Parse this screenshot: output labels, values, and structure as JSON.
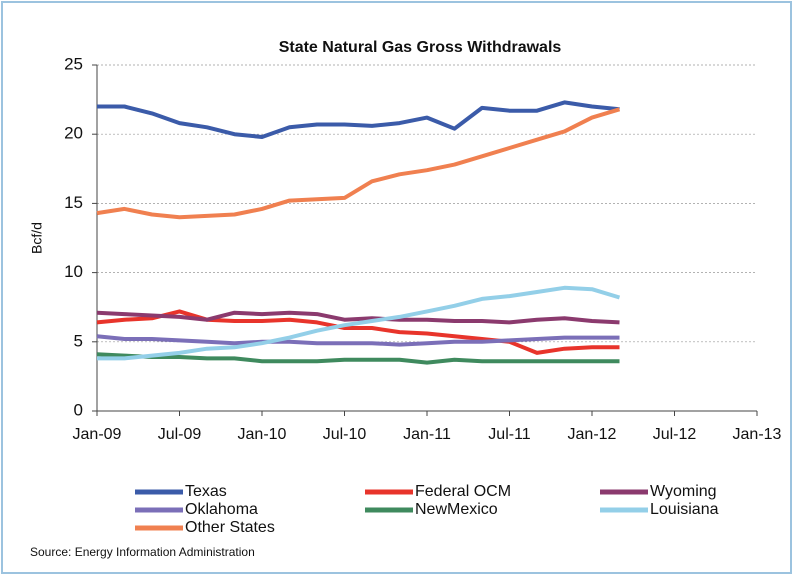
{
  "chart_data": {
    "type": "line",
    "title": "State Natural Gas Gross Withdrawals",
    "y_label": "Bcf/d",
    "source": "Source: Energy Information Administration",
    "x": [
      "2009-01",
      "2009-03",
      "2009-05",
      "2009-07",
      "2009-09",
      "2009-11",
      "2010-01",
      "2010-03",
      "2010-05",
      "2010-07",
      "2010-09",
      "2010-11",
      "2011-01",
      "2011-03",
      "2011-05",
      "2011-07",
      "2011-09",
      "2011-11",
      "2012-01",
      "2012-03"
    ],
    "xlim": [
      "2009-01",
      "2013-01"
    ],
    "xticks": [
      {
        "value": "2009-01",
        "label": "Jan-09"
      },
      {
        "value": "2009-07",
        "label": "Jul-09"
      },
      {
        "value": "2010-01",
        "label": "Jan-10"
      },
      {
        "value": "2010-07",
        "label": "Jul-10"
      },
      {
        "value": "2011-01",
        "label": "Jan-11"
      },
      {
        "value": "2011-07",
        "label": "Jul-11"
      },
      {
        "value": "2012-01",
        "label": "Jan-12"
      },
      {
        "value": "2012-07",
        "label": "Jul-12"
      },
      {
        "value": "2013-01",
        "label": "Jan-13"
      }
    ],
    "ylim": [
      0,
      25
    ],
    "yticks": [
      0,
      5,
      10,
      15,
      20,
      25
    ],
    "grid": true,
    "series": [
      {
        "name": "Texas",
        "color": "#3b5ba9",
        "values": [
          22,
          22,
          21.5,
          20.8,
          20.5,
          20,
          19.8,
          20.5,
          20.7,
          20.7,
          20.6,
          20.8,
          21.2,
          20.4,
          21.9,
          21.7,
          21.7,
          22.3,
          22,
          21.8
        ]
      },
      {
        "name": "Federal OCM",
        "color": "#e8342b",
        "values": [
          6.4,
          6.6,
          6.7,
          7.2,
          6.6,
          6.5,
          6.5,
          6.6,
          6.4,
          6,
          6,
          5.7,
          5.6,
          5.4,
          5.2,
          5,
          4.2,
          4.5,
          4.6,
          4.6
        ]
      },
      {
        "name": "Wyoming",
        "color": "#8b3a6e",
        "values": [
          7.1,
          7,
          6.9,
          6.8,
          6.6,
          7.1,
          7,
          7.1,
          7,
          6.6,
          6.7,
          6.6,
          6.6,
          6.5,
          6.5,
          6.4,
          6.6,
          6.7,
          6.5,
          6.4
        ]
      },
      {
        "name": "Oklahoma",
        "color": "#7b6fb8",
        "values": [
          5.4,
          5.2,
          5.2,
          5.1,
          5,
          4.9,
          5,
          5,
          4.9,
          4.9,
          4.9,
          4.8,
          4.9,
          5,
          5,
          5.1,
          5.2,
          5.3,
          5.3,
          5.3
        ]
      },
      {
        "name": "NewMexico",
        "color": "#3f8a5e",
        "values": [
          4.1,
          4,
          3.9,
          3.9,
          3.8,
          3.8,
          3.6,
          3.6,
          3.6,
          3.7,
          3.7,
          3.7,
          3.5,
          3.7,
          3.6,
          3.6,
          3.6,
          3.6,
          3.6,
          3.6
        ]
      },
      {
        "name": "Louisiana",
        "color": "#93cfe8",
        "values": [
          3.8,
          3.8,
          4,
          4.2,
          4.5,
          4.6,
          4.9,
          5.3,
          5.8,
          6.2,
          6.5,
          6.8,
          7.2,
          7.6,
          8.1,
          8.3,
          8.6,
          8.9,
          8.8,
          8.2
        ]
      },
      {
        "name": "Other States",
        "color": "#f08050",
        "values": [
          14.3,
          14.6,
          14.2,
          14,
          14.1,
          14.2,
          14.6,
          15.2,
          15.3,
          15.4,
          16.6,
          17.1,
          17.4,
          17.8,
          18.4,
          19,
          19.6,
          20.2,
          21.2,
          21.8
        ]
      }
    ]
  }
}
